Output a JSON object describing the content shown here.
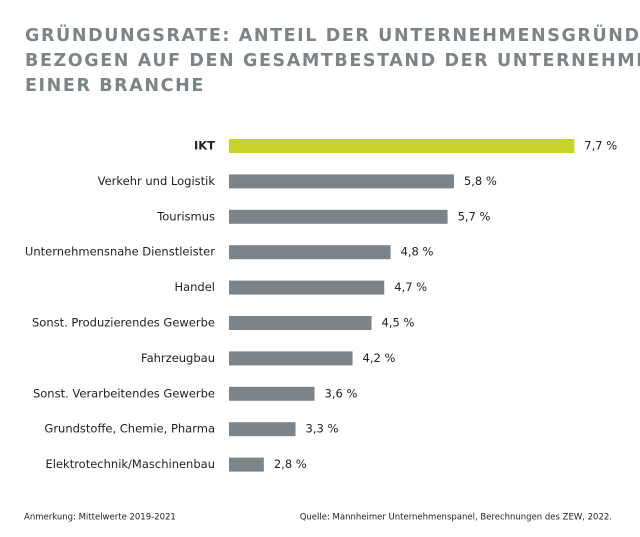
{
  "chart_data": {
    "type": "bar",
    "orientation": "horizontal",
    "title": [
      "GRÜNDUNGSRATE: ANTEIL DER UNTERNEHMENSGRÜNDUNGEN",
      "BEZOGEN AUF DEN GESAMTBESTAND DER UNTERNEHMEN",
      "EINER BRANCHE"
    ],
    "categories": [
      "IKT",
      "Verkehr und Logistik",
      "Tourismus",
      "Unternehmensnahe Dienstleister",
      "Handel",
      "Sonst. Produzierendes Gewerbe",
      "Fahrzeugbau",
      "Sonst. Verarbeitendes Gewerbe",
      "Grundstoffe, Chemie, Pharma",
      "Elektrotechnik/Maschinenbau"
    ],
    "values": [
      7.7,
      5.8,
      5.7,
      4.8,
      4.7,
      4.5,
      4.2,
      3.6,
      3.3,
      2.8
    ],
    "value_labels": [
      "7,7 %",
      "5,8 %",
      "5,7 %",
      "4,8 %",
      "4,7 %",
      "4,5 %",
      "4,2 %",
      "3,6 %",
      "3,3 %",
      "2,8 %"
    ],
    "colors": [
      "#c9d42b",
      "#7d8489",
      "#7d8489",
      "#7d8489",
      "#7d8489",
      "#7d8489",
      "#7d8489",
      "#7d8489",
      "#7d8489",
      "#7d8489"
    ],
    "xlim": [
      2.25,
      8.5
    ],
    "note": "Anmerkung: Mittelwerte 2019-2021",
    "source": "Quelle: Mannheimer Unternehmenspanel, Berechnungen des ZEW, 2022."
  }
}
